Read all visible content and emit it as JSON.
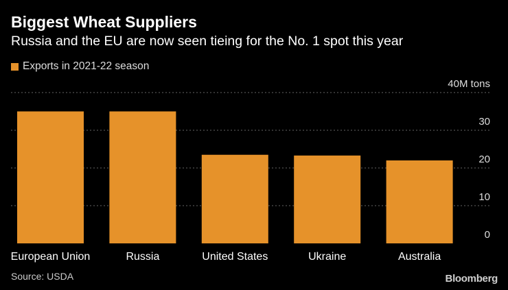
{
  "chart_data": {
    "type": "bar",
    "title": "Biggest Wheat Suppliers",
    "subtitle": "Russia and the EU are now seen tieing for the No. 1 spot this year",
    "legend": [
      "Exports in 2021-22 season"
    ],
    "categories": [
      "European Union",
      "Russia",
      "United States",
      "Ukraine",
      "Australia"
    ],
    "series": [
      {
        "name": "Exports in 2021-22 season",
        "values": [
          35,
          35,
          23.5,
          23.3,
          22
        ]
      }
    ],
    "ylim": [
      0,
      40
    ],
    "yticks": [
      0,
      10,
      20,
      30,
      40
    ],
    "ytick_labels": [
      "0",
      "10",
      "20",
      "30",
      "40M tons"
    ],
    "ylabel": "",
    "xlabel": "",
    "grid": true,
    "axis_side": "right"
  },
  "source": "Source: USDA",
  "brand": "Bloomberg",
  "colors": {
    "bar": "#e6922a",
    "background": "#000000",
    "grid": "#666666",
    "text": "#ffffff",
    "muted_text": "#cccccc"
  }
}
